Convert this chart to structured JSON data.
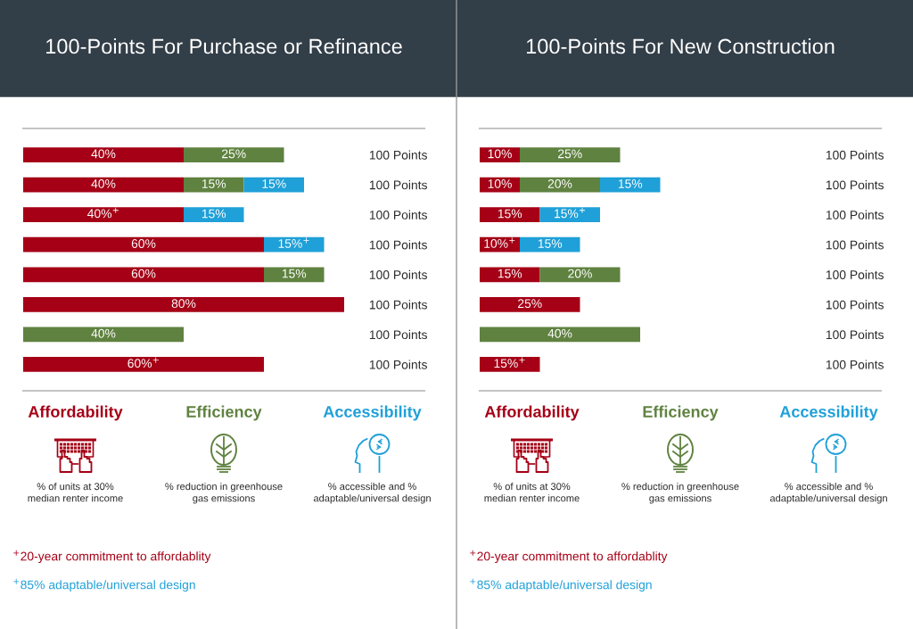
{
  "chart_data": [
    {
      "type": "bar",
      "orientation": "horizontal",
      "stacked": true,
      "title": "100-Points For Purchase or Refinance",
      "categories": [
        "100 Points",
        "100 Points",
        "100 Points",
        "100 Points",
        "100 Points",
        "100 Points",
        "100 Points",
        "100 Points"
      ],
      "series": [
        {
          "name": "Affordability",
          "color": "#a50016",
          "values": [
            40,
            40,
            40,
            60,
            60,
            80,
            null,
            60
          ],
          "value_labels": [
            "40%",
            "40%",
            "40%$^{+}$",
            "60%",
            "60%",
            "80%",
            null,
            "60%$^{+}$"
          ]
        },
        {
          "name": "Efficiency",
          "color": "#5f8240",
          "values": [
            25,
            15,
            null,
            null,
            15,
            null,
            40,
            null
          ],
          "value_labels": [
            "25%",
            "15%",
            null,
            null,
            "15%",
            null,
            "40%",
            null
          ]
        },
        {
          "name": "Accessibility",
          "color": "#1fa0d8",
          "values": [
            null,
            15,
            15,
            15,
            null,
            null,
            null,
            null
          ],
          "value_labels": [
            null,
            "15%",
            "15%",
            "15%$^{+}$",
            null,
            null,
            null,
            null
          ]
        }
      ],
      "xlim": [
        0,
        100
      ],
      "tick_labels": "y",
      "legend": "bottom",
      "annotations": [
        "% of units at 30%\nmedian renter income",
        "% reduction in greenhouse\ngas emissions",
        "% accessible and %\nadaptable/universal design",
        "$^{+}$20-year commitment to affordablity",
        "$^{+}$85% adaptable/universal design"
      ]
    },
    {
      "type": "bar",
      "orientation": "horizontal",
      "stacked": true,
      "title": "100-Points For New Construction",
      "categories": [
        "100 Points",
        "100 Points",
        "100 Points",
        "100 Points",
        "100 Points",
        "100 Points",
        "100 Points",
        "100 Points"
      ],
      "series": [
        {
          "name": "Affordability",
          "color": "#a50016",
          "values": [
            10,
            10,
            15,
            10,
            15,
            25,
            null,
            15
          ],
          "value_labels": [
            "10%",
            "10%",
            "15%",
            "10%$^{+}$",
            "15%",
            "25%",
            null,
            "15%$^{+}$"
          ]
        },
        {
          "name": "Efficiency",
          "color": "#5f8240",
          "values": [
            25,
            20,
            null,
            null,
            20,
            null,
            40,
            null
          ],
          "value_labels": [
            "25%",
            "20%",
            null,
            null,
            "20%",
            null,
            "40%",
            null
          ]
        },
        {
          "name": "Accessibility",
          "color": "#1fa0d8",
          "values": [
            null,
            15,
            15,
            15,
            null,
            null,
            null,
            null
          ],
          "value_labels": [
            null,
            "15%",
            "15%$^{+}$",
            "15%",
            null,
            null,
            null,
            null
          ]
        }
      ],
      "xlim": [
        0,
        100
      ],
      "tick_labels": "y",
      "legend": "bottom",
      "annotations": [
        "% of units at 30%\nmedian renter income",
        "% reduction in greenhouse\ngas emissions",
        "% accessible and %\nadaptable/universal design",
        "$^{+}$20-year commitment to affordablity",
        "$^{+}$85% adaptable/universal design"
      ]
    }
  ]
}
